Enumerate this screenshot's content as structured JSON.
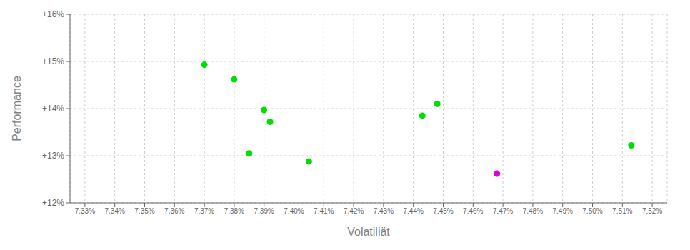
{
  "chart_data": {
    "type": "scatter",
    "xlabel": "Volatiliät",
    "ylabel": "Performance",
    "series": [
      {
        "color": "#00dd00",
        "x": [
          7.37,
          7.38,
          7.39,
          7.392,
          7.385,
          7.405,
          7.443,
          7.448,
          7.513
        ],
        "values": [
          14.93,
          14.62,
          13.97,
          13.72,
          13.05,
          12.88,
          13.85,
          14.1,
          13.22
        ]
      },
      {
        "color": "#dd00dd",
        "x": [
          7.468
        ],
        "values": [
          12.62
        ]
      }
    ],
    "xlim": [
      7.325,
      7.525
    ],
    "xticks": [
      {
        "value": 7.33,
        "label": "7.33%"
      },
      {
        "value": 7.34,
        "label": "7.34%"
      },
      {
        "value": 7.35,
        "label": "7.35%"
      },
      {
        "value": 7.36,
        "label": "7.36%"
      },
      {
        "value": 7.37,
        "label": "7.37%"
      },
      {
        "value": 7.38,
        "label": "7.38%"
      },
      {
        "value": 7.39,
        "label": "7.39%"
      },
      {
        "value": 7.4,
        "label": "7.40%"
      },
      {
        "value": 7.41,
        "label": "7.41%"
      },
      {
        "value": 7.42,
        "label": "7.42%"
      },
      {
        "value": 7.43,
        "label": "7.43%"
      },
      {
        "value": 7.44,
        "label": "7.44%"
      },
      {
        "value": 7.45,
        "label": "7.45%"
      },
      {
        "value": 7.46,
        "label": "7.46%"
      },
      {
        "value": 7.47,
        "label": "7.47%"
      },
      {
        "value": 7.48,
        "label": "7.48%"
      },
      {
        "value": 7.49,
        "label": "7.49%"
      },
      {
        "value": 7.5,
        "label": "7.50%"
      },
      {
        "value": 7.51,
        "label": "7.51%"
      },
      {
        "value": 7.52,
        "label": "7.52%"
      }
    ],
    "ylim": [
      12.0,
      16.0
    ],
    "yticks": [
      {
        "value": 12.0,
        "label": "+12%"
      },
      {
        "value": 13.0,
        "label": "+13%"
      },
      {
        "value": 14.0,
        "label": "+14%"
      },
      {
        "value": 15.0,
        "label": "+15%"
      },
      {
        "value": 16.0,
        "label": "+16%"
      }
    ],
    "grid": true
  }
}
